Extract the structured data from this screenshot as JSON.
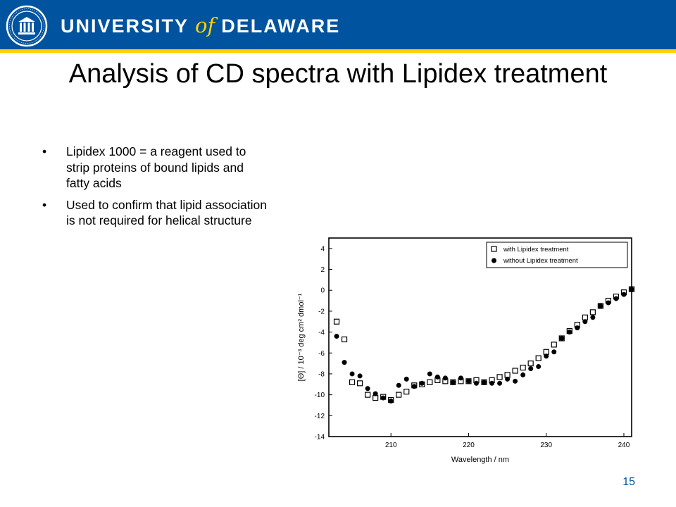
{
  "header": {
    "wordmark_left": "UNIVERSITY",
    "wordmark_of": "of",
    "wordmark_right": "DELAWARE",
    "colors": {
      "banner": "#00539f",
      "accent": "#ffd200"
    },
    "seal_icon": "university-seal-icon"
  },
  "slide": {
    "title": "Analysis of CD spectra with Lipidex treatment",
    "bullets": [
      "Lipidex 1000 = a reagent used to strip proteins of bound lipids and fatty acids",
      "Used to confirm that lipid association is not required for helical structure"
    ],
    "page_number": "15"
  },
  "chart_data": {
    "type": "scatter",
    "title": "",
    "xlabel": "Wavelength / nm",
    "ylabel": "[Θ] / 10⁻³ deg cm² dmol⁻¹",
    "xlim": [
      202,
      241
    ],
    "ylim": [
      -14,
      5
    ],
    "xticks": [
      210,
      220,
      230,
      240
    ],
    "yticks": [
      4,
      2,
      0,
      -2,
      -4,
      -6,
      -8,
      -10,
      -12,
      -14
    ],
    "legend_position": "top-right",
    "grid": false,
    "series": [
      {
        "name": "with Lipidex treatment",
        "marker": "open-square",
        "x": [
          203,
          204,
          205,
          206,
          207,
          208,
          209,
          210,
          211,
          212,
          213,
          214,
          215,
          216,
          217,
          218,
          219,
          220,
          221,
          222,
          223,
          224,
          225,
          226,
          227,
          228,
          229,
          230,
          231,
          232,
          233,
          234,
          235,
          236,
          237,
          238,
          239,
          240,
          241
        ],
        "y": [
          -3.0,
          -4.7,
          -8.8,
          -8.9,
          -10.0,
          -10.3,
          -10.2,
          -10.5,
          -10.0,
          -9.7,
          -9.1,
          -9.0,
          -8.8,
          -8.6,
          -8.7,
          -8.8,
          -8.7,
          -8.7,
          -8.6,
          -8.8,
          -8.6,
          -8.3,
          -8.1,
          -7.7,
          -7.4,
          -7.0,
          -6.5,
          -5.9,
          -5.2,
          -4.6,
          -3.9,
          -3.3,
          -2.6,
          -2.1,
          -1.5,
          -1.0,
          -0.6,
          -0.2,
          0.1
        ]
      },
      {
        "name": "without Lipidex treatment",
        "marker": "filled-circle",
        "x": [
          203,
          204,
          205,
          206,
          207,
          208,
          209,
          210,
          211,
          212,
          213,
          214,
          215,
          216,
          217,
          218,
          219,
          220,
          221,
          222,
          223,
          224,
          225,
          226,
          227,
          228,
          229,
          230,
          231,
          232,
          233,
          234,
          235,
          236,
          237,
          238,
          239,
          240,
          241
        ],
        "y": [
          -4.4,
          -6.9,
          -8.0,
          -8.2,
          -9.4,
          -9.9,
          -10.3,
          -10.6,
          -9.1,
          -8.5,
          -9.2,
          -8.9,
          -8.0,
          -8.3,
          -8.4,
          -8.8,
          -8.4,
          -8.7,
          -8.9,
          -8.8,
          -8.9,
          -8.9,
          -8.5,
          -8.7,
          -8.1,
          -7.5,
          -7.3,
          -6.3,
          -5.9,
          -4.6,
          -4.0,
          -3.6,
          -3.0,
          -2.6,
          -1.5,
          -1.2,
          -0.8,
          -0.4,
          0.1
        ]
      }
    ]
  }
}
